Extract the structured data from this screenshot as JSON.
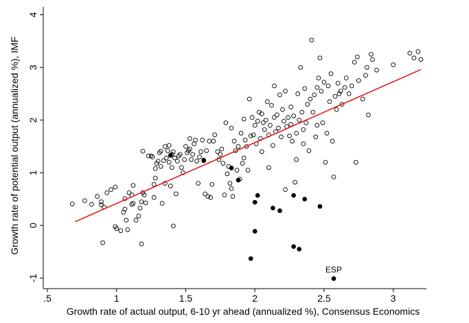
{
  "chart_data": {
    "type": "scatter",
    "title": "",
    "xlabel": "Growth rate of actual output, 6-10 yr ahead (annualized %), Consensus Economics",
    "ylabel": "Growth rate of potential output (annualized %), IMF",
    "xlim": [
      0.47,
      3.24
    ],
    "ylim": [
      -1.2,
      4.15
    ],
    "xticks": [
      ".5",
      "1",
      "1.5",
      "2",
      "2.5",
      "3"
    ],
    "xtick_values": [
      0.5,
      1,
      1.5,
      2,
      2.5,
      3
    ],
    "yticks": [
      "-1",
      "0",
      "1",
      "2",
      "3",
      "4"
    ],
    "ytick_values": [
      -1,
      0,
      1,
      2,
      3,
      4
    ],
    "grid": false,
    "legend": "none",
    "fit_line": {
      "x": [
        0.7,
        3.2
      ],
      "y": [
        0.07,
        2.96
      ],
      "color": "#e31a1c"
    },
    "annotations": [
      {
        "text": "ESP",
        "x": 2.57,
        "y": -1.0
      }
    ],
    "series": [
      {
        "marker": "hollow-circle",
        "color": "#000000",
        "points": [
          [
            0.68,
            0.41
          ],
          [
            0.77,
            0.47
          ],
          [
            0.82,
            0.4
          ],
          [
            0.86,
            0.55
          ],
          [
            0.89,
            0.39
          ],
          [
            0.89,
            0.45
          ],
          [
            0.91,
            0.35
          ],
          [
            0.93,
            0.62
          ],
          [
            0.96,
            0.68
          ],
          [
            0.99,
            0.73
          ],
          [
            0.9,
            -0.33
          ],
          [
            0.99,
            -0.02
          ],
          [
            1.0,
            -0.06
          ],
          [
            1.03,
            -0.1
          ],
          [
            1.05,
            0.25
          ],
          [
            1.06,
            0.31
          ],
          [
            1.06,
            0.51
          ],
          [
            1.07,
            0.1
          ],
          [
            1.09,
            0.62
          ],
          [
            1.11,
            0.4
          ],
          [
            1.11,
            0.58
          ],
          [
            1.12,
            0.76
          ],
          [
            1.12,
            0.42
          ],
          [
            1.14,
            0.1
          ],
          [
            1.08,
            -0.08
          ],
          [
            1.16,
            0.18
          ],
          [
            1.17,
            0.33
          ],
          [
            1.18,
            0.45
          ],
          [
            1.19,
            0.62
          ],
          [
            1.19,
            1.41
          ],
          [
            1.18,
            -0.35
          ],
          [
            1.2,
            0.58
          ],
          [
            1.21,
            0.43
          ],
          [
            1.23,
            1.32
          ],
          [
            1.25,
            1.32
          ],
          [
            1.26,
            1.3
          ],
          [
            1.27,
            0.78
          ],
          [
            1.27,
            0.53
          ],
          [
            1.28,
            0.9
          ],
          [
            1.28,
            1.08
          ],
          [
            1.29,
            1.18
          ],
          [
            1.3,
            1.22
          ],
          [
            1.31,
            1.38
          ],
          [
            1.32,
            1.12
          ],
          [
            1.32,
            1.41
          ],
          [
            1.33,
            0.42
          ],
          [
            1.34,
            1.23
          ],
          [
            1.35,
            1.5
          ],
          [
            1.35,
            0.8
          ],
          [
            1.36,
            1.28
          ],
          [
            1.37,
            1.42
          ],
          [
            1.38,
            1.2
          ],
          [
            1.38,
            1.52
          ],
          [
            1.39,
            0.75
          ],
          [
            1.4,
            1.1
          ],
          [
            1.4,
            1.35
          ],
          [
            1.41,
            1.4
          ],
          [
            1.41,
            -0.01
          ],
          [
            1.42,
            1.28
          ],
          [
            1.43,
            0.6
          ],
          [
            1.44,
            1.22
          ],
          [
            1.45,
            1.32
          ],
          [
            1.46,
            1.35
          ],
          [
            1.47,
            1.1
          ],
          [
            1.48,
            1.0
          ],
          [
            1.49,
            1.25
          ],
          [
            1.5,
            1.5
          ],
          [
            1.51,
            1.38
          ],
          [
            1.52,
            1.42
          ],
          [
            1.53,
            1.45
          ],
          [
            1.53,
            1.65
          ],
          [
            1.54,
            1.25
          ],
          [
            1.55,
            1.35
          ],
          [
            1.56,
            1.55
          ],
          [
            1.57,
            1.62
          ],
          [
            1.58,
            1.22
          ],
          [
            1.59,
            0.8
          ],
          [
            1.6,
            1.3
          ],
          [
            1.61,
            1.4
          ],
          [
            1.62,
            1.62
          ],
          [
            1.63,
            1.23
          ],
          [
            1.64,
            0.6
          ],
          [
            1.65,
            1.42
          ],
          [
            1.66,
            0.55
          ],
          [
            1.67,
            1.6
          ],
          [
            1.68,
            0.53
          ],
          [
            1.69,
            0.78
          ],
          [
            1.7,
            1.6
          ],
          [
            1.71,
            1.72
          ],
          [
            1.73,
            1.4
          ],
          [
            1.74,
            1.25
          ],
          [
            1.75,
            1.35
          ],
          [
            1.76,
            1.45
          ],
          [
            1.77,
            1.18
          ],
          [
            1.78,
            0.58
          ],
          [
            1.79,
            1.95
          ],
          [
            1.8,
            0.98
          ],
          [
            1.81,
            1.12
          ],
          [
            1.82,
            0.8
          ],
          [
            1.83,
            0.7
          ],
          [
            1.83,
            1.85
          ],
          [
            1.84,
            0.55
          ],
          [
            1.85,
            1.6
          ],
          [
            1.86,
            1.42
          ],
          [
            1.87,
            1.05
          ],
          [
            1.88,
            1.5
          ],
          [
            1.89,
            0.88
          ],
          [
            1.9,
            1.75
          ],
          [
            1.91,
            1.18
          ],
          [
            1.92,
            2.02
          ],
          [
            1.93,
            1.62
          ],
          [
            1.94,
            1.5
          ],
          [
            1.95,
            1.05
          ],
          [
            1.96,
            2.4
          ],
          [
            1.97,
            1.7
          ],
          [
            1.98,
            2.05
          ],
          [
            1.99,
            1.72
          ],
          [
            2.0,
            1.9
          ],
          [
            2.01,
            1.55
          ],
          [
            2.02,
            1.98
          ],
          [
            2.03,
            2.15
          ],
          [
            2.04,
            1.65
          ],
          [
            2.05,
            2.12
          ],
          [
            2.06,
            1.95
          ],
          [
            2.07,
            1.82
          ],
          [
            2.08,
            2.0
          ],
          [
            2.09,
            2.35
          ],
          [
            2.1,
            1.72
          ],
          [
            2.11,
            1.9
          ],
          [
            2.12,
            2.28
          ],
          [
            2.13,
            1.52
          ],
          [
            2.14,
            2.05
          ],
          [
            2.15,
            1.78
          ],
          [
            2.16,
            2.1
          ],
          [
            2.17,
            1.85
          ],
          [
            2.18,
            2.48
          ],
          [
            2.19,
            1.68
          ],
          [
            2.2,
            2.2
          ],
          [
            2.21,
            1.98
          ],
          [
            2.22,
            0.68
          ],
          [
            2.23,
            1.88
          ],
          [
            2.24,
            2.05
          ],
          [
            2.25,
            1.7
          ],
          [
            2.26,
            2.25
          ],
          [
            2.27,
            1.6
          ],
          [
            2.28,
            2.08
          ],
          [
            2.29,
            0.82
          ],
          [
            2.3,
            1.75
          ],
          [
            2.31,
            2.5
          ],
          [
            2.32,
            2.0
          ],
          [
            2.33,
            3.0
          ],
          [
            2.34,
            2.15
          ],
          [
            2.35,
            1.82
          ],
          [
            2.36,
            2.6
          ],
          [
            2.37,
            1.95
          ],
          [
            2.38,
            2.3
          ],
          [
            2.39,
            1.42
          ],
          [
            2.4,
            2.4
          ],
          [
            2.41,
            3.52
          ],
          [
            2.42,
            2.15
          ],
          [
            2.43,
            2.48
          ],
          [
            2.44,
            1.68
          ],
          [
            2.45,
            2.62
          ],
          [
            2.46,
            2.8
          ],
          [
            2.47,
            3.18
          ],
          [
            2.48,
            2.55
          ],
          [
            2.49,
            1.95
          ],
          [
            2.5,
            2.72
          ],
          [
            2.51,
            1.2
          ],
          [
            2.52,
            1.75
          ],
          [
            2.53,
            2.65
          ],
          [
            2.54,
            2.35
          ],
          [
            2.55,
            2.88
          ],
          [
            2.56,
            1.6
          ],
          [
            2.57,
            0.92
          ],
          [
            2.58,
            2.45
          ],
          [
            2.59,
            2.2
          ],
          [
            2.6,
            2.7
          ],
          [
            2.61,
            2.5
          ],
          [
            2.62,
            2.55
          ],
          [
            2.63,
            2.3
          ],
          [
            2.65,
            2.62
          ],
          [
            2.66,
            2.8
          ],
          [
            2.68,
            2.5
          ],
          [
            2.7,
            2.65
          ],
          [
            2.72,
            3.1
          ],
          [
            2.73,
            1.2
          ],
          [
            2.74,
            3.2
          ],
          [
            2.75,
            2.75
          ],
          [
            2.78,
            2.4
          ],
          [
            2.8,
            2.85
          ],
          [
            2.81,
            3.0
          ],
          [
            2.82,
            2.1
          ],
          [
            2.84,
            3.25
          ],
          [
            2.85,
            3.15
          ],
          [
            2.88,
            2.95
          ],
          [
            3.0,
            3.05
          ],
          [
            3.12,
            3.27
          ],
          [
            3.15,
            3.18
          ],
          [
            3.18,
            3.3
          ],
          [
            3.2,
            3.15
          ],
          [
            2.26,
            1.92
          ],
          [
            2.22,
            2.55
          ],
          [
            2.14,
            2.65
          ],
          [
            2.3,
            1.25
          ],
          [
            2.05,
            1.4
          ],
          [
            1.92,
            1.28
          ],
          [
            2.1,
            1.1
          ],
          [
            2.35,
            1.55
          ],
          [
            2.45,
            1.9
          ]
        ]
      },
      {
        "marker": "filled-circle",
        "color": "#000000",
        "points": [
          [
            1.39,
            1.33
          ],
          [
            1.63,
            1.24
          ],
          [
            1.83,
            1.09
          ],
          [
            1.88,
            0.86
          ],
          [
            1.97,
            -0.63
          ],
          [
            2.0,
            -0.11
          ],
          [
            2.0,
            0.44
          ],
          [
            2.02,
            0.57
          ],
          [
            2.13,
            0.33
          ],
          [
            2.18,
            0.28
          ],
          [
            2.28,
            -0.4
          ],
          [
            2.28,
            0.57
          ],
          [
            2.32,
            -0.45
          ],
          [
            2.36,
            0.5
          ],
          [
            2.47,
            0.36
          ],
          [
            2.57,
            -1.01
          ]
        ]
      }
    ]
  }
}
